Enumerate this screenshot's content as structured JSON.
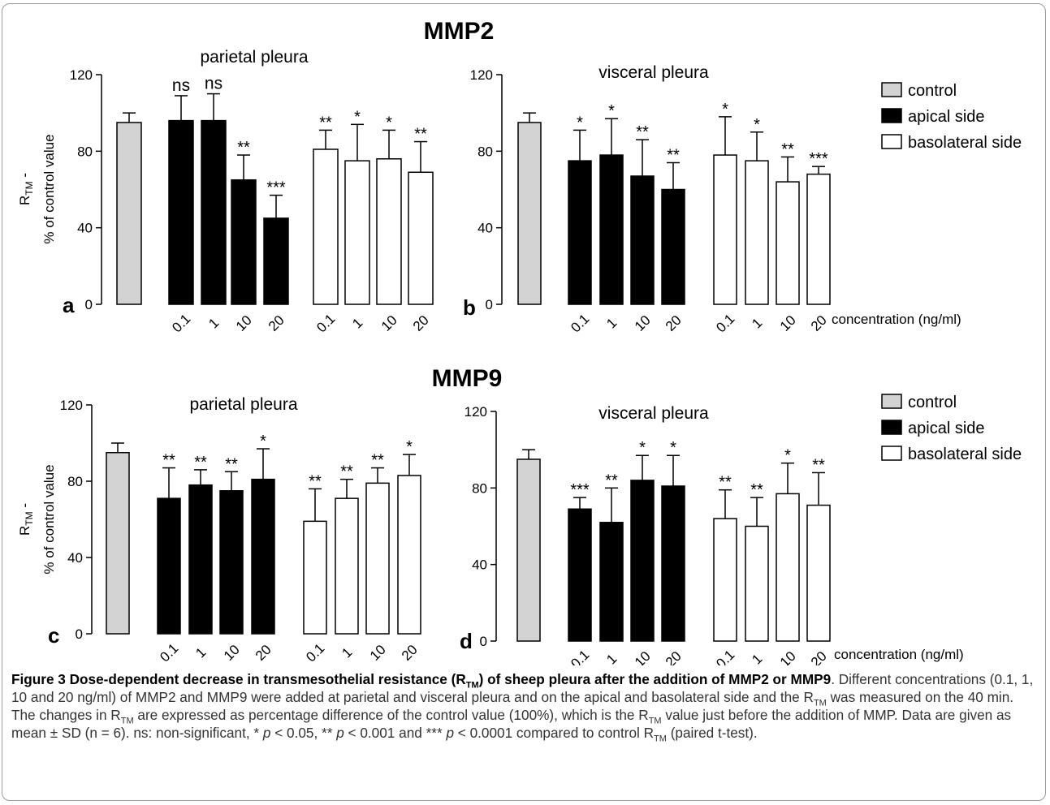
{
  "figure": {
    "sections": [
      {
        "title": "MMP2"
      },
      {
        "title": "MMP9"
      }
    ],
    "concentration_label": "concentration (ng/ml)",
    "legend": {
      "control": "control",
      "apical": "apical side",
      "basolateral": "basolateral side"
    },
    "colors": {
      "control": "#d3d3d3",
      "apical": "#000000",
      "basolateral": "#ffffff"
    }
  },
  "chart_data": [
    {
      "panel": "a",
      "type": "bar",
      "title": "parietal pleura",
      "ylabel": "R_TM - % of control value",
      "ylim": [
        0,
        120
      ],
      "yticks": [
        0,
        40,
        80,
        120
      ],
      "categories": [
        "",
        "0.1",
        "1",
        "10",
        "20",
        "0.1",
        "1",
        "10",
        "20"
      ],
      "groups": [
        "control",
        "apical",
        "apical",
        "apical",
        "apical",
        "basolateral",
        "basolateral",
        "basolateral",
        "basolateral"
      ],
      "values": [
        95,
        96,
        96,
        65,
        45,
        81,
        75,
        76,
        69
      ],
      "errors": [
        5,
        13,
        14,
        13,
        12,
        10,
        19,
        15,
        16
      ],
      "significance": [
        "",
        "ns",
        "ns",
        "**",
        "***",
        "**",
        "*",
        "*",
        "**"
      ]
    },
    {
      "panel": "b",
      "type": "bar",
      "title": "visceral pleura",
      "ylabel": "",
      "ylim": [
        0,
        120
      ],
      "yticks": [
        0,
        40,
        80,
        120
      ],
      "categories": [
        "",
        "0.1",
        "1",
        "10",
        "20",
        "0.1",
        "1",
        "10",
        "20"
      ],
      "groups": [
        "control",
        "apical",
        "apical",
        "apical",
        "apical",
        "basolateral",
        "basolateral",
        "basolateral",
        "basolateral"
      ],
      "values": [
        95,
        75,
        78,
        67,
        60,
        78,
        75,
        64,
        68
      ],
      "errors": [
        5,
        16,
        19,
        19,
        14,
        20,
        15,
        13,
        4
      ],
      "significance": [
        "",
        "*",
        "*",
        "**",
        "**",
        "*",
        "*",
        "**",
        "***"
      ]
    },
    {
      "panel": "c",
      "type": "bar",
      "title": "parietal pleura",
      "ylabel": "R_TM - % of control value",
      "ylim": [
        0,
        120
      ],
      "yticks": [
        0,
        40,
        80,
        120
      ],
      "categories": [
        "",
        "0.1",
        "1",
        "10",
        "20",
        "0.1",
        "1",
        "10",
        "20"
      ],
      "groups": [
        "control",
        "apical",
        "apical",
        "apical",
        "apical",
        "basolateral",
        "basolateral",
        "basolateral",
        "basolateral"
      ],
      "values": [
        95,
        71,
        78,
        75,
        81,
        59,
        71,
        79,
        83
      ],
      "errors": [
        5,
        16,
        8,
        10,
        16,
        17,
        10,
        8,
        11
      ],
      "significance": [
        "",
        "**",
        "**",
        "**",
        "*",
        "**",
        "**",
        "**",
        "*"
      ]
    },
    {
      "panel": "d",
      "type": "bar",
      "title": "visceral pleura",
      "ylabel": "",
      "ylim": [
        0,
        120
      ],
      "yticks": [
        0,
        40,
        80,
        120
      ],
      "categories": [
        "",
        "0.1",
        "1",
        "10",
        "20",
        "0.1",
        "1",
        "10",
        "20"
      ],
      "groups": [
        "control",
        "apical",
        "apical",
        "apical",
        "apical",
        "basolateral",
        "basolateral",
        "basolateral",
        "basolateral"
      ],
      "values": [
        95,
        69,
        62,
        84,
        81,
        64,
        60,
        77,
        71
      ],
      "errors": [
        5,
        6,
        18,
        13,
        16,
        15,
        15,
        16,
        17
      ],
      "significance": [
        "",
        "***",
        "**",
        "*",
        "*",
        "**",
        "**",
        "*",
        "**"
      ]
    }
  ],
  "caption": {
    "label": "Figure 3",
    "title_pre": "Dose-dependent decrease in transmesothelial resistance (R",
    "title_sub": "TM",
    "title_post": ") of sheep pleura after the addition of MMP2 or MMP9",
    "t1": ". Different concentrations (0.1, 1, 10 and 20 ng/ml) of MMP2 and MMP9 were added at parietal and visceral pleura and on the apical and basolateral side and the R",
    "s1": "TM",
    "t2": " was measured on the 40 min. The changes in R",
    "s2": "TM",
    "t3": " are expressed as percentage difference of the control value (100%), which is the R",
    "s3": "TM",
    "t4": " value just before the addition of MMP. Data are given as mean ± SD (n = 6). ns: non-significant, * ",
    "p1": "p",
    "t5": " < 0.05, ** ",
    "p2": "p",
    "t6": " < 0.001 and *** ",
    "p3": "p",
    "t7": " < 0.0001 compared to control R",
    "s4": "TM",
    "t8": " (paired t-test)."
  }
}
